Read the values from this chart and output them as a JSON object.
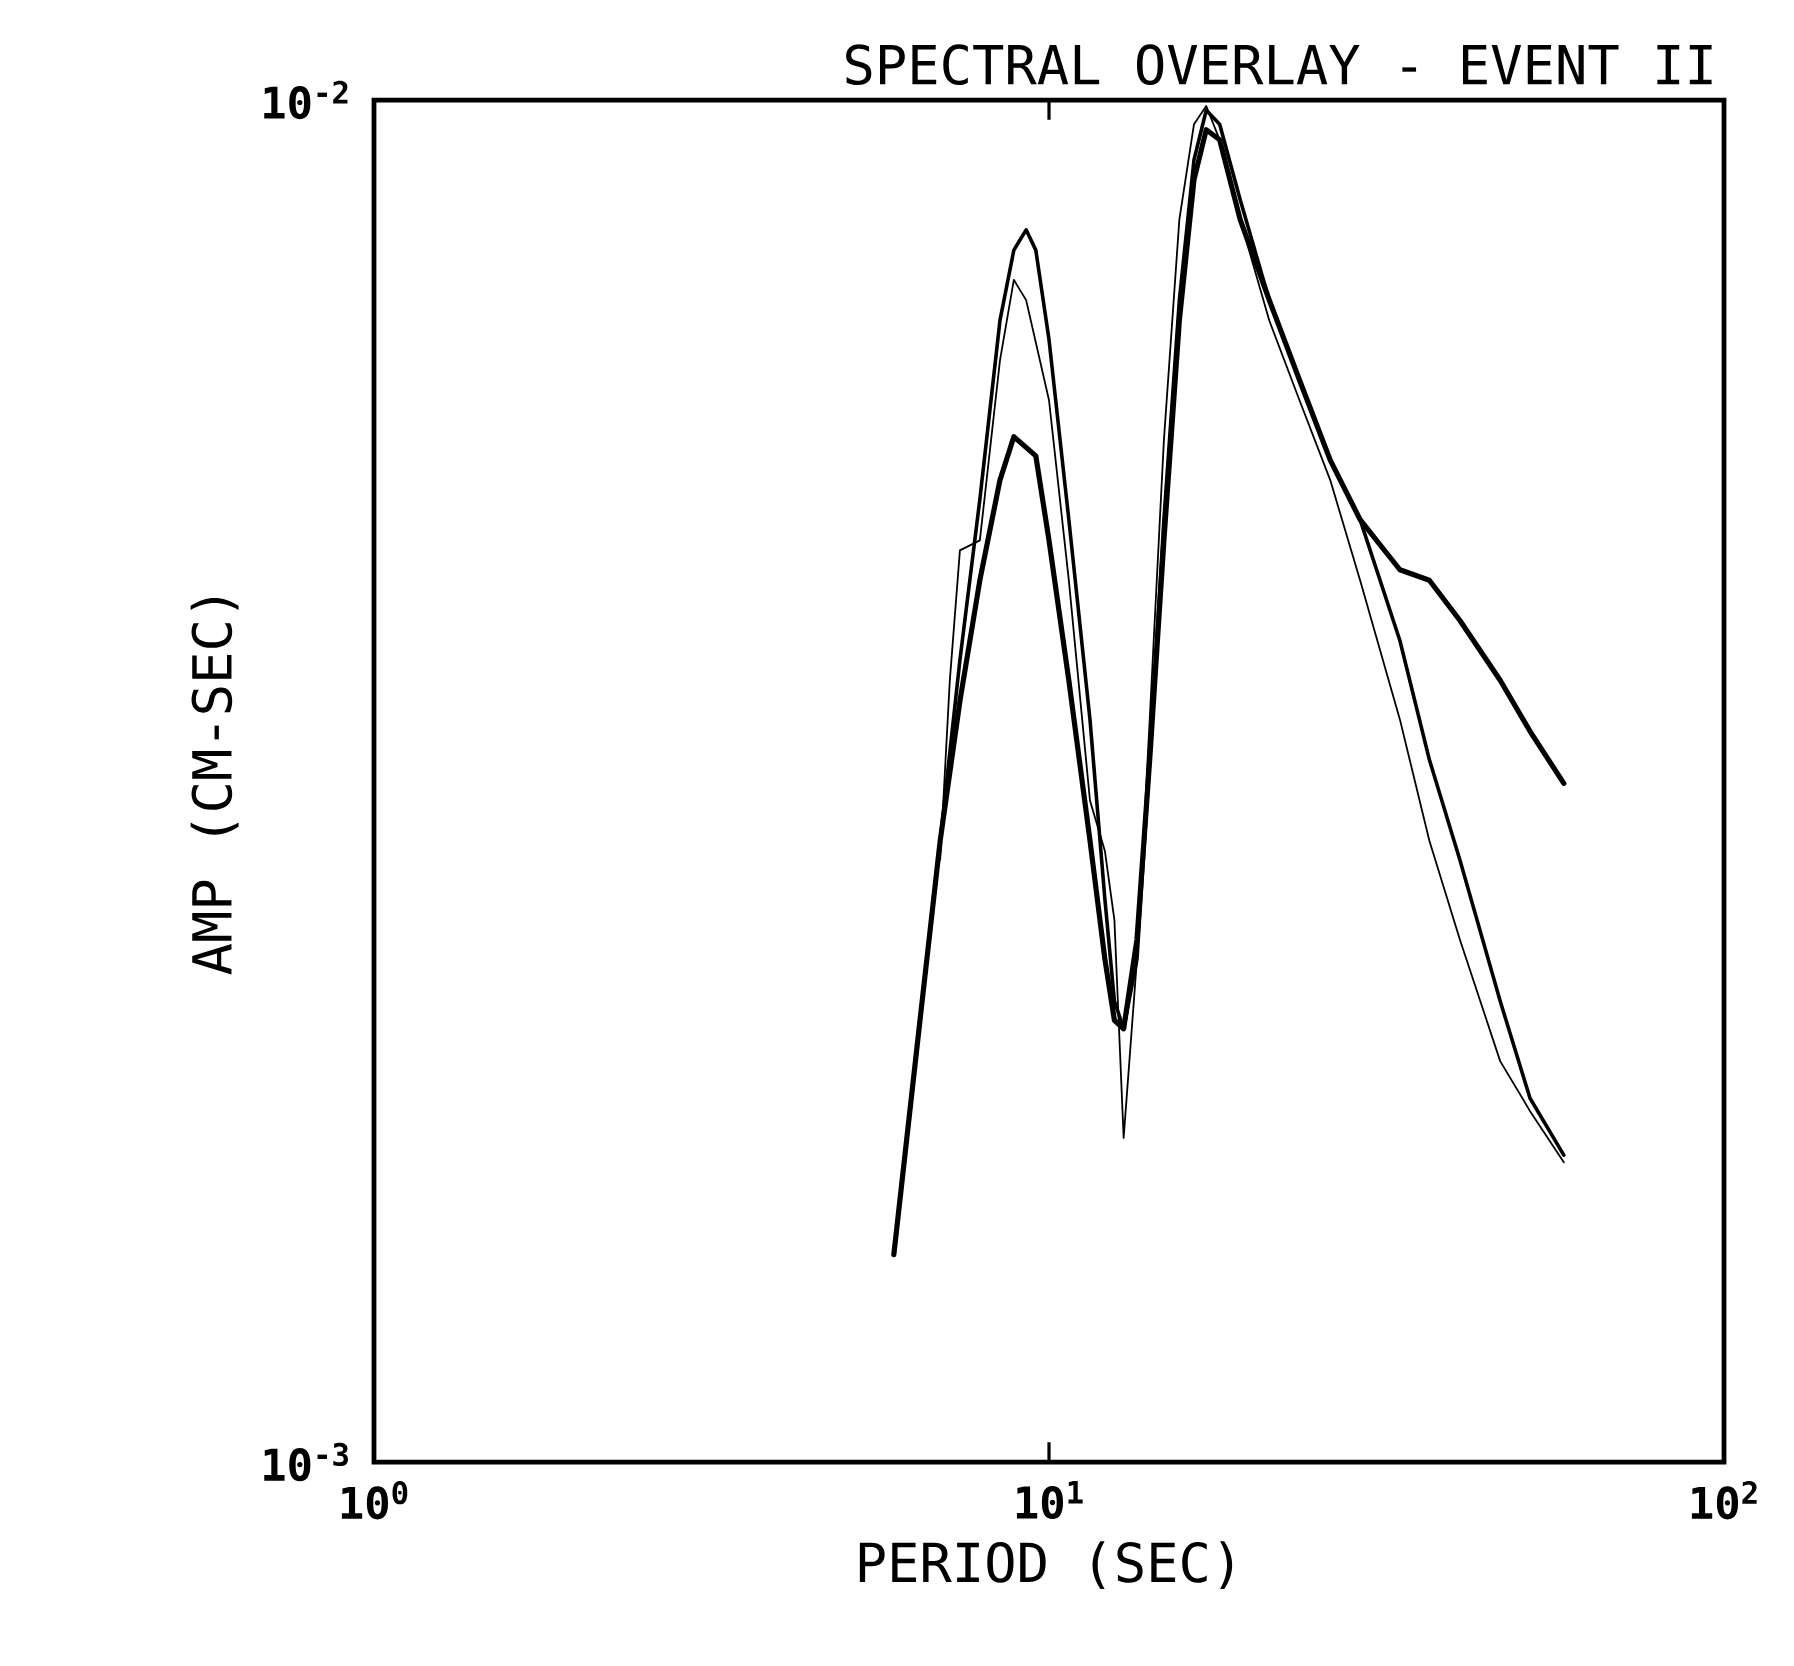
{
  "chart_data": {
    "type": "line",
    "title": "SPECTRAL OVERLAY - EVENT II",
    "xlabel": "PERIOD (SEC)",
    "ylabel": "AMP (CM-SEC)",
    "log": "xy",
    "xlim": [
      1,
      100
    ],
    "ylim": [
      0.001,
      0.01
    ],
    "xticks": [
      {
        "value": 1,
        "label": "10$^{0}$"
      },
      {
        "value": 10,
        "label": "10$^{1}$"
      },
      {
        "value": 100,
        "label": "10$^{2}$"
      }
    ],
    "yticks": [
      {
        "value": 0.001,
        "label": "10$^{-3}$"
      },
      {
        "value": 0.01,
        "label": "10$^{-2}$"
      }
    ],
    "series": [
      {
        "color": "#000000",
        "x": [
          5.89,
          6.44,
          6.9,
          7.38,
          7.9,
          8.46,
          8.87,
          9.56,
          10.0,
          10.7,
          11.5,
          12.1,
          12.5,
          12.9,
          13.5,
          14.1,
          14.8,
          15.6,
          16.4,
          17.1,
          17.9,
          19.2,
          21.2,
          23.5,
          26.1,
          28.9,
          33.1,
          36.6,
          40.6,
          46.6,
          51.6,
          57.9
        ],
        "values": [
          0.00142,
          0.00211,
          0.00286,
          0.00362,
          0.00444,
          0.00526,
          0.00566,
          0.00548,
          0.00475,
          0.00375,
          0.00286,
          0.00234,
          0.00211,
          0.00208,
          0.00242,
          0.00328,
          0.00475,
          0.00689,
          0.00874,
          0.00951,
          0.00935,
          0.00817,
          0.00713,
          0.00623,
          0.00544,
          0.00492,
          0.00452,
          0.00444,
          0.00415,
          0.00375,
          0.00344,
          0.00315
        ]
      },
      {
        "color": "#000000",
        "x": [
          5.89,
          6.44,
          6.9,
          7.38,
          7.9,
          8.46,
          8.87,
          9.25,
          9.56,
          10.0,
          10.7,
          11.5,
          12.1,
          12.5,
          12.9,
          13.5,
          14.1,
          14.8,
          15.6,
          16.4,
          17.1,
          17.9,
          19.2,
          21.2,
          23.5,
          26.1,
          28.9,
          33.1,
          36.6,
          40.6,
          46.6,
          51.6,
          57.9
        ],
        "values": [
          0.00142,
          0.00211,
          0.00286,
          0.00388,
          0.00509,
          0.00689,
          0.00776,
          0.00803,
          0.00776,
          0.00667,
          0.00492,
          0.00351,
          0.00259,
          0.00218,
          0.00208,
          0.00234,
          0.00328,
          0.00492,
          0.00713,
          0.00904,
          0.00983,
          0.0096,
          0.00845,
          0.00713,
          0.00623,
          0.00544,
          0.00492,
          0.00401,
          0.00328,
          0.00277,
          0.00218,
          0.00185,
          0.00168
        ]
      },
      {
        "color": "#000000",
        "x": [
          6.9,
          7.13,
          7.38,
          7.9,
          8.46,
          8.87,
          9.25,
          10.0,
          10.7,
          11.5,
          12.1,
          12.5,
          12.9,
          13.5,
          14.1,
          14.8,
          15.6,
          16.4,
          17.1,
          17.9,
          19.2,
          21.2,
          23.5,
          26.1,
          28.9,
          33.1,
          36.6,
          40.6,
          46.6,
          51.6,
          57.9
        ],
        "values": [
          0.00277,
          0.00375,
          0.00467,
          0.00475,
          0.00644,
          0.00738,
          0.00713,
          0.00602,
          0.00444,
          0.00306,
          0.00281,
          0.0025,
          0.00173,
          0.00234,
          0.00351,
          0.00563,
          0.00817,
          0.0096,
          0.0099,
          0.00935,
          0.00817,
          0.00689,
          0.00602,
          0.00526,
          0.00444,
          0.00351,
          0.00286,
          0.00242,
          0.00197,
          0.00181,
          0.00166
        ]
      }
    ]
  }
}
